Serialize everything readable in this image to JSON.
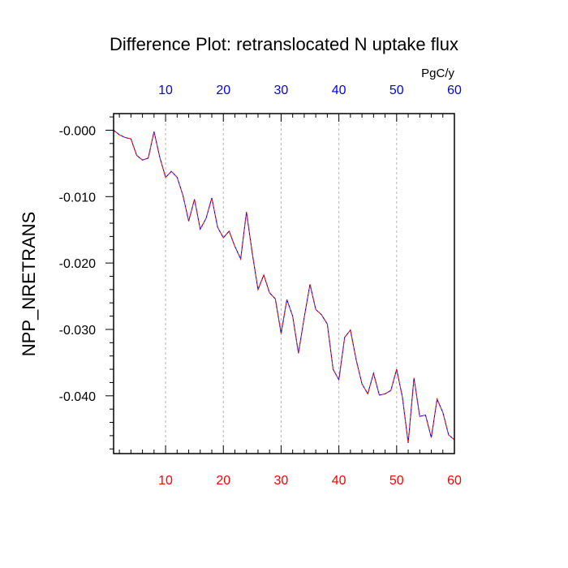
{
  "chart_data": {
    "type": "line",
    "title": "Difference Plot: retranslocated N uptake flux",
    "ylabel": "NPP_NRETRANS",
    "units_label": "PgC/y",
    "xlim": [
      1,
      60
    ],
    "ylim": [
      -0.0487,
      0.0025
    ],
    "x_ticks": [
      10,
      20,
      30,
      40,
      50,
      60
    ],
    "y_ticks": [
      0.0,
      -0.01,
      -0.02,
      -0.03,
      -0.04
    ],
    "y_tick_labels": [
      "-0.000",
      "-0.010",
      "-0.020",
      "-0.030",
      "-0.040"
    ],
    "top_axis_color": "#0000ff",
    "bottom_axis_color": "#ff0000",
    "grid": "vertical dashed at major x ticks",
    "series": [
      {
        "line_colors": [
          "#0000ff",
          "#ff0000"
        ],
        "line_style": "dashed",
        "x": [
          1,
          2,
          3,
          4,
          5,
          6,
          7,
          8,
          9,
          10,
          11,
          12,
          13,
          14,
          15,
          16,
          17,
          18,
          19,
          20,
          21,
          22,
          23,
          24,
          25,
          26,
          27,
          28,
          29,
          30,
          31,
          32,
          33,
          34,
          35,
          36,
          37,
          38,
          39,
          40,
          41,
          42,
          43,
          44,
          45,
          46,
          47,
          48,
          49,
          50,
          51,
          52,
          53,
          54,
          55,
          56,
          57,
          58,
          59,
          60
        ],
        "values": [
          0.0,
          -0.0007,
          -0.0011,
          -0.0013,
          -0.0038,
          -0.0045,
          -0.0042,
          -0.0002,
          -0.0041,
          -0.0071,
          -0.0062,
          -0.0071,
          -0.0098,
          -0.0137,
          -0.0104,
          -0.0149,
          -0.0133,
          -0.0102,
          -0.0146,
          -0.0162,
          -0.0152,
          -0.0175,
          -0.0194,
          -0.0123,
          -0.0185,
          -0.024,
          -0.0218,
          -0.0245,
          -0.0254,
          -0.0306,
          -0.0255,
          -0.028,
          -0.0336,
          -0.0282,
          -0.0232,
          -0.027,
          -0.0278,
          -0.0292,
          -0.036,
          -0.0376,
          -0.0312,
          -0.0301,
          -0.0346,
          -0.0382,
          -0.0397,
          -0.0366,
          -0.0399,
          -0.0397,
          -0.0392,
          -0.036,
          -0.0402,
          -0.0471,
          -0.0373,
          -0.0431,
          -0.0429,
          -0.0463,
          -0.0405,
          -0.0425,
          -0.0459,
          -0.0466
        ]
      }
    ]
  }
}
